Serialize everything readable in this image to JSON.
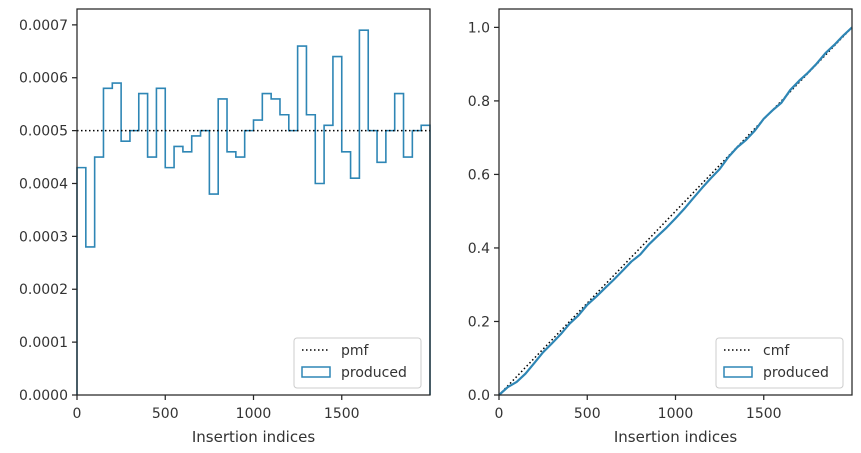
{
  "chart_data": [
    {
      "type": "histogram",
      "xlabel": "Insertion indices",
      "ylabel": "",
      "xlim": [
        0,
        2000
      ],
      "ylim": [
        0,
        0.00073
      ],
      "xticks": [
        0,
        500,
        1000,
        1500
      ],
      "xtick_labels": [
        "0",
        "500",
        "1000",
        "1500"
      ],
      "yticks": [
        0,
        0.0001,
        0.0002,
        0.0003,
        0.0004,
        0.0005,
        0.0006,
        0.0007
      ],
      "ytick_labels": [
        "0.0000",
        "0.0001",
        "0.0002",
        "0.0003",
        "0.0004",
        "0.0005",
        "0.0006",
        "0.0007"
      ],
      "legend_position": "lower right",
      "grid": false,
      "reference_line": {
        "name": "pmf",
        "style": "dotted",
        "color": "#000000",
        "y": 0.0005
      },
      "series": [
        {
          "name": "produced",
          "style": "step",
          "color": "#2e86b5",
          "bin_width": 50,
          "values": [
            0.00043,
            0.00028,
            0.00045,
            0.00058,
            0.00059,
            0.00048,
            0.0005,
            0.00057,
            0.00045,
            0.00058,
            0.00043,
            0.00047,
            0.00046,
            0.00049,
            0.0005,
            0.00038,
            0.00056,
            0.00046,
            0.00045,
            0.0005,
            0.00052,
            0.00057,
            0.00056,
            0.00053,
            0.0005,
            0.00066,
            0.00053,
            0.0004,
            0.00051,
            0.00064,
            0.00046,
            0.00041,
            0.00069,
            0.0005,
            0.00044,
            0.0005,
            0.00057,
            0.00045,
            0.0005,
            0.00051
          ]
        }
      ]
    },
    {
      "type": "line",
      "xlabel": "Insertion indices",
      "ylabel": "",
      "xlim": [
        0,
        2000
      ],
      "ylim": [
        0,
        1.05
      ],
      "xticks": [
        0,
        500,
        1000,
        1500
      ],
      "xtick_labels": [
        "0",
        "500",
        "1000",
        "1500"
      ],
      "yticks": [
        0,
        0.2,
        0.4,
        0.6,
        0.8,
        1.0
      ],
      "ytick_labels": [
        "0.0",
        "0.2",
        "0.4",
        "0.6",
        "0.8",
        "1.0"
      ],
      "legend_position": "lower right",
      "grid": false,
      "reference_line": {
        "name": "cmf",
        "style": "dotted",
        "color": "#000000",
        "points": [
          [
            0,
            0
          ],
          [
            2000,
            1.0
          ]
        ]
      },
      "series": [
        {
          "name": "produced",
          "style": "step",
          "color": "#2e86b5",
          "x": [
            0,
            50,
            100,
            150,
            200,
            250,
            300,
            350,
            400,
            450,
            500,
            550,
            600,
            650,
            700,
            750,
            800,
            850,
            900,
            950,
            1000,
            1050,
            1100,
            1150,
            1200,
            1250,
            1300,
            1350,
            1400,
            1450,
            1500,
            1550,
            1600,
            1650,
            1700,
            1750,
            1800,
            1850,
            1900,
            1950,
            2000
          ],
          "y": [
            0.0,
            0.0215,
            0.0355,
            0.058,
            0.087,
            0.1165,
            0.1405,
            0.1655,
            0.194,
            0.2165,
            0.2455,
            0.267,
            0.2905,
            0.3135,
            0.338,
            0.363,
            0.382,
            0.41,
            0.433,
            0.4555,
            0.4805,
            0.5065,
            0.535,
            0.563,
            0.5895,
            0.6145,
            0.6475,
            0.674,
            0.694,
            0.7195,
            0.7515,
            0.7745,
            0.795,
            0.8295,
            0.8545,
            0.8765,
            0.9015,
            0.93,
            0.9525,
            0.9775,
            1.0
          ]
        }
      ]
    }
  ],
  "legends": [
    [
      {
        "label": "pmf",
        "kind": "line"
      },
      {
        "label": "produced",
        "kind": "patch"
      }
    ],
    [
      {
        "label": "cmf",
        "kind": "line"
      },
      {
        "label": "produced",
        "kind": "patch"
      }
    ]
  ]
}
